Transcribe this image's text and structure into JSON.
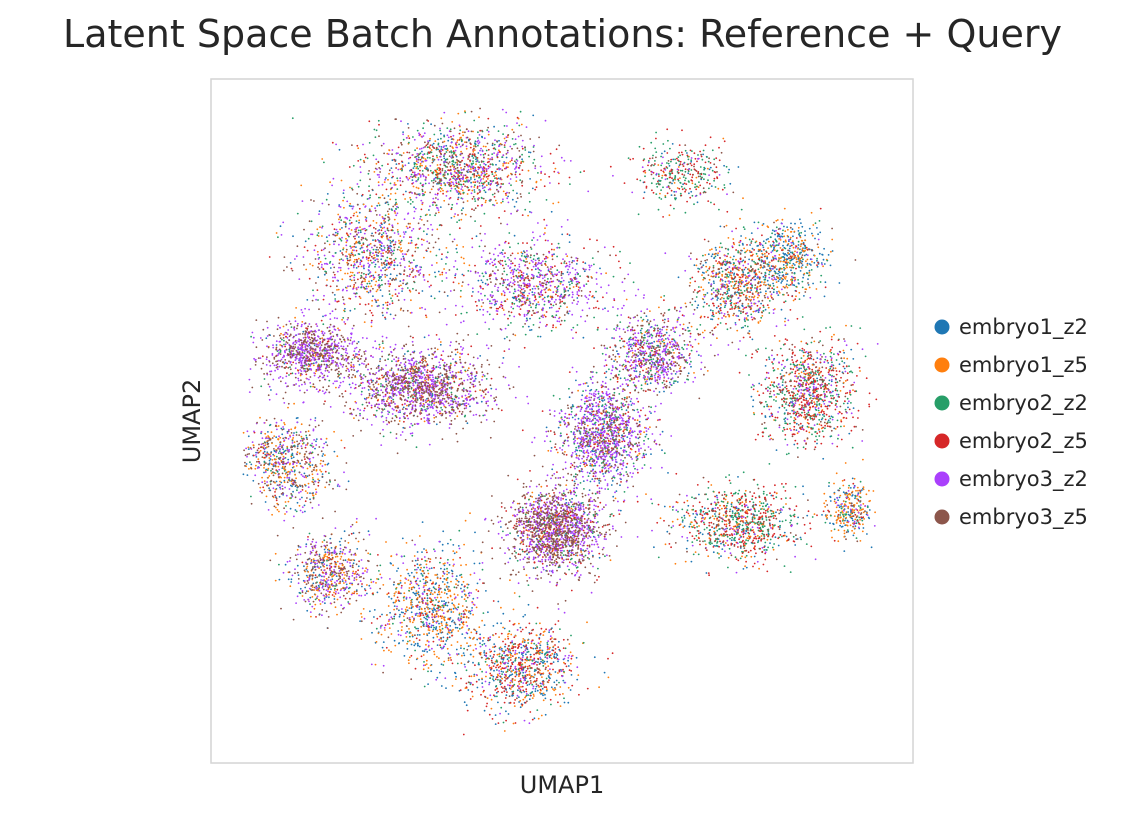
{
  "chart_data": {
    "type": "scatter",
    "title": "Latent Space Batch Annotations: Reference + Query",
    "xlabel": "UMAP1",
    "ylabel": "UMAP2",
    "grid": false,
    "ticks": false,
    "legend_placement": "right",
    "xlim": [
      0,
      10
    ],
    "ylim": [
      0,
      10
    ],
    "series": [
      {
        "name": "embryo1_z2",
        "color": "#1f77b4"
      },
      {
        "name": "embryo1_z5",
        "color": "#ff7f0e"
      },
      {
        "name": "embryo2_z2",
        "color": "#279e68"
      },
      {
        "name": "embryo2_z5",
        "color": "#d62728"
      },
      {
        "name": "embryo3_z2",
        "color": "#aa40fc"
      },
      {
        "name": "embryo3_z5",
        "color": "#8c564b"
      }
    ],
    "clusters": [
      {
        "x": 3.5,
        "y": 8.7,
        "sx": 1.1,
        "sy": 0.6,
        "n": 1300,
        "w": [
          0.12,
          0.16,
          0.22,
          0.14,
          0.22,
          0.14
        ]
      },
      {
        "x": 2.3,
        "y": 7.4,
        "sx": 0.9,
        "sy": 0.8,
        "n": 1000,
        "w": [
          0.16,
          0.2,
          0.12,
          0.12,
          0.25,
          0.15
        ]
      },
      {
        "x": 1.4,
        "y": 6.0,
        "sx": 0.6,
        "sy": 0.4,
        "n": 900,
        "w": [
          0.03,
          0.05,
          0.04,
          0.05,
          0.45,
          0.38
        ]
      },
      {
        "x": 3.0,
        "y": 5.5,
        "sx": 0.9,
        "sy": 0.5,
        "n": 1500,
        "w": [
          0.05,
          0.06,
          0.06,
          0.08,
          0.4,
          0.35
        ]
      },
      {
        "x": 1.1,
        "y": 4.4,
        "sx": 0.6,
        "sy": 0.6,
        "n": 700,
        "w": [
          0.2,
          0.25,
          0.06,
          0.04,
          0.2,
          0.25
        ]
      },
      {
        "x": 1.7,
        "y": 2.8,
        "sx": 0.5,
        "sy": 0.5,
        "n": 600,
        "w": [
          0.18,
          0.22,
          0.05,
          0.05,
          0.25,
          0.25
        ]
      },
      {
        "x": 3.1,
        "y": 2.3,
        "sx": 0.7,
        "sy": 0.8,
        "n": 900,
        "w": [
          0.3,
          0.35,
          0.08,
          0.08,
          0.12,
          0.07
        ]
      },
      {
        "x": 4.4,
        "y": 1.4,
        "sx": 0.7,
        "sy": 0.6,
        "n": 900,
        "w": [
          0.28,
          0.2,
          0.1,
          0.3,
          0.08,
          0.04
        ]
      },
      {
        "x": 4.9,
        "y": 3.4,
        "sx": 0.6,
        "sy": 0.55,
        "n": 1600,
        "w": [
          0.04,
          0.04,
          0.08,
          0.1,
          0.34,
          0.4
        ]
      },
      {
        "x": 5.6,
        "y": 4.8,
        "sx": 0.6,
        "sy": 0.7,
        "n": 1300,
        "w": [
          0.14,
          0.06,
          0.12,
          0.1,
          0.42,
          0.16
        ]
      },
      {
        "x": 4.6,
        "y": 7.0,
        "sx": 0.9,
        "sy": 0.6,
        "n": 900,
        "w": [
          0.1,
          0.08,
          0.15,
          0.2,
          0.35,
          0.12
        ]
      },
      {
        "x": 6.3,
        "y": 6.0,
        "sx": 0.6,
        "sy": 0.5,
        "n": 800,
        "w": [
          0.1,
          0.08,
          0.15,
          0.12,
          0.35,
          0.2
        ]
      },
      {
        "x": 7.5,
        "y": 7.0,
        "sx": 0.6,
        "sy": 0.6,
        "n": 800,
        "w": [
          0.18,
          0.26,
          0.16,
          0.18,
          0.1,
          0.12
        ]
      },
      {
        "x": 8.2,
        "y": 7.4,
        "sx": 0.5,
        "sy": 0.45,
        "n": 500,
        "w": [
          0.45,
          0.3,
          0.08,
          0.07,
          0.05,
          0.05
        ]
      },
      {
        "x": 8.5,
        "y": 5.4,
        "sx": 0.6,
        "sy": 0.7,
        "n": 1000,
        "w": [
          0.1,
          0.12,
          0.25,
          0.3,
          0.12,
          0.11
        ]
      },
      {
        "x": 7.5,
        "y": 3.5,
        "sx": 0.8,
        "sy": 0.5,
        "n": 900,
        "w": [
          0.12,
          0.14,
          0.3,
          0.3,
          0.06,
          0.08
        ]
      },
      {
        "x": 6.7,
        "y": 8.6,
        "sx": 0.6,
        "sy": 0.4,
        "n": 350,
        "w": [
          0.08,
          0.06,
          0.4,
          0.3,
          0.08,
          0.08
        ]
      },
      {
        "x": 9.1,
        "y": 3.7,
        "sx": 0.3,
        "sy": 0.4,
        "n": 300,
        "w": [
          0.35,
          0.35,
          0.1,
          0.08,
          0.06,
          0.06
        ]
      }
    ]
  }
}
